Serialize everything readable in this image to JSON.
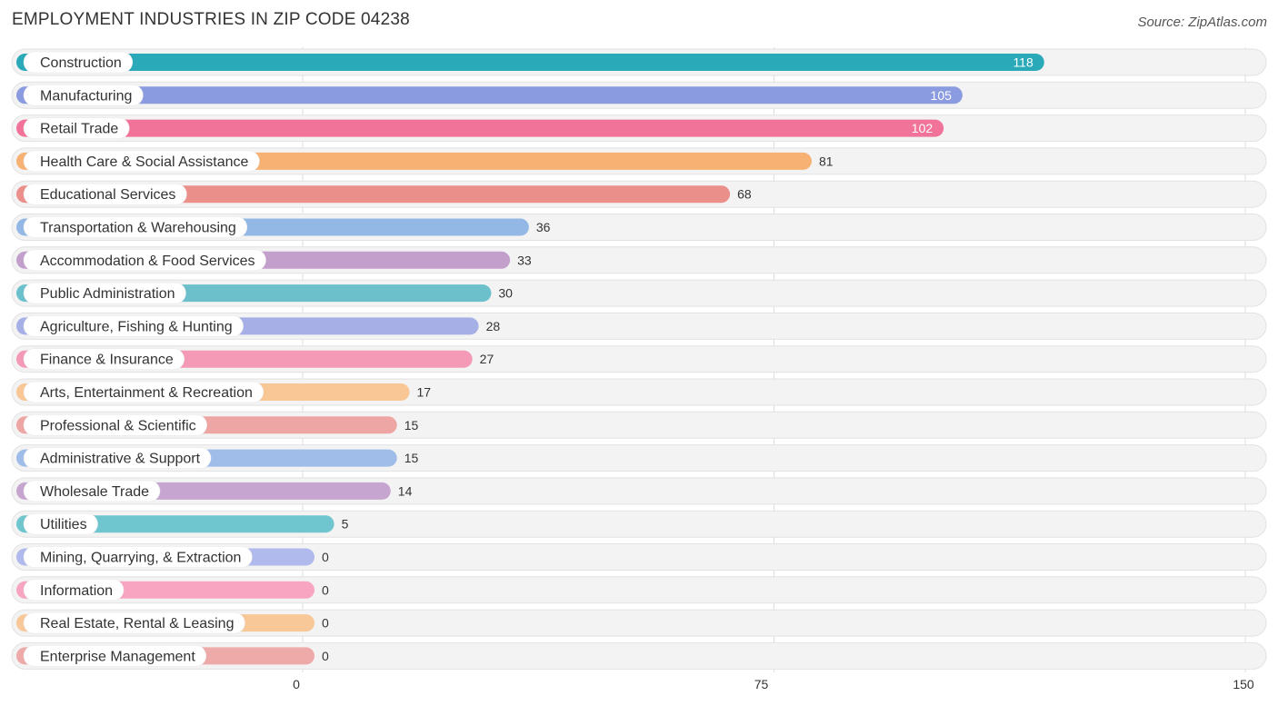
{
  "title": "EMPLOYMENT INDUSTRIES IN ZIP CODE 04238",
  "source": "Source: ZipAtlas.com",
  "chart_data": {
    "type": "bar",
    "orientation": "horizontal",
    "title": "EMPLOYMENT INDUSTRIES IN ZIP CODE 04238",
    "xlabel": "",
    "ylabel": "",
    "xlim": [
      0,
      150
    ],
    "ticks": [
      0,
      75,
      150
    ],
    "tick_labels": [
      "0",
      "75",
      "150"
    ],
    "categories": [
      "Construction",
      "Manufacturing",
      "Retail Trade",
      "Health Care & Social Assistance",
      "Educational Services",
      "Transportation & Warehousing",
      "Accommodation & Food Services",
      "Public Administration",
      "Agriculture, Fishing & Hunting",
      "Finance & Insurance",
      "Arts, Entertainment & Recreation",
      "Professional & Scientific",
      "Administrative & Support",
      "Wholesale Trade",
      "Utilities",
      "Mining, Quarrying, & Extraction",
      "Information",
      "Real Estate, Rental & Leasing",
      "Enterprise Management"
    ],
    "values": [
      118,
      105,
      102,
      81,
      68,
      36,
      33,
      30,
      28,
      27,
      17,
      15,
      15,
      14,
      5,
      0,
      0,
      0,
      0
    ],
    "colors": [
      "#2aa9b8",
      "#8b9be0",
      "#f2739a",
      "#f7b173",
      "#eb8f8b",
      "#93b8e6",
      "#c3a0cb",
      "#6cc0cc",
      "#a7b0e6",
      "#f49ab6",
      "#f9c695",
      "#eea6a4",
      "#9fbde8",
      "#c6a6d0",
      "#6fc6cf",
      "#b0baec",
      "#f7a5c0",
      "#f9c898",
      "#eeaaa8"
    ],
    "value_label_inside_threshold": 100
  }
}
